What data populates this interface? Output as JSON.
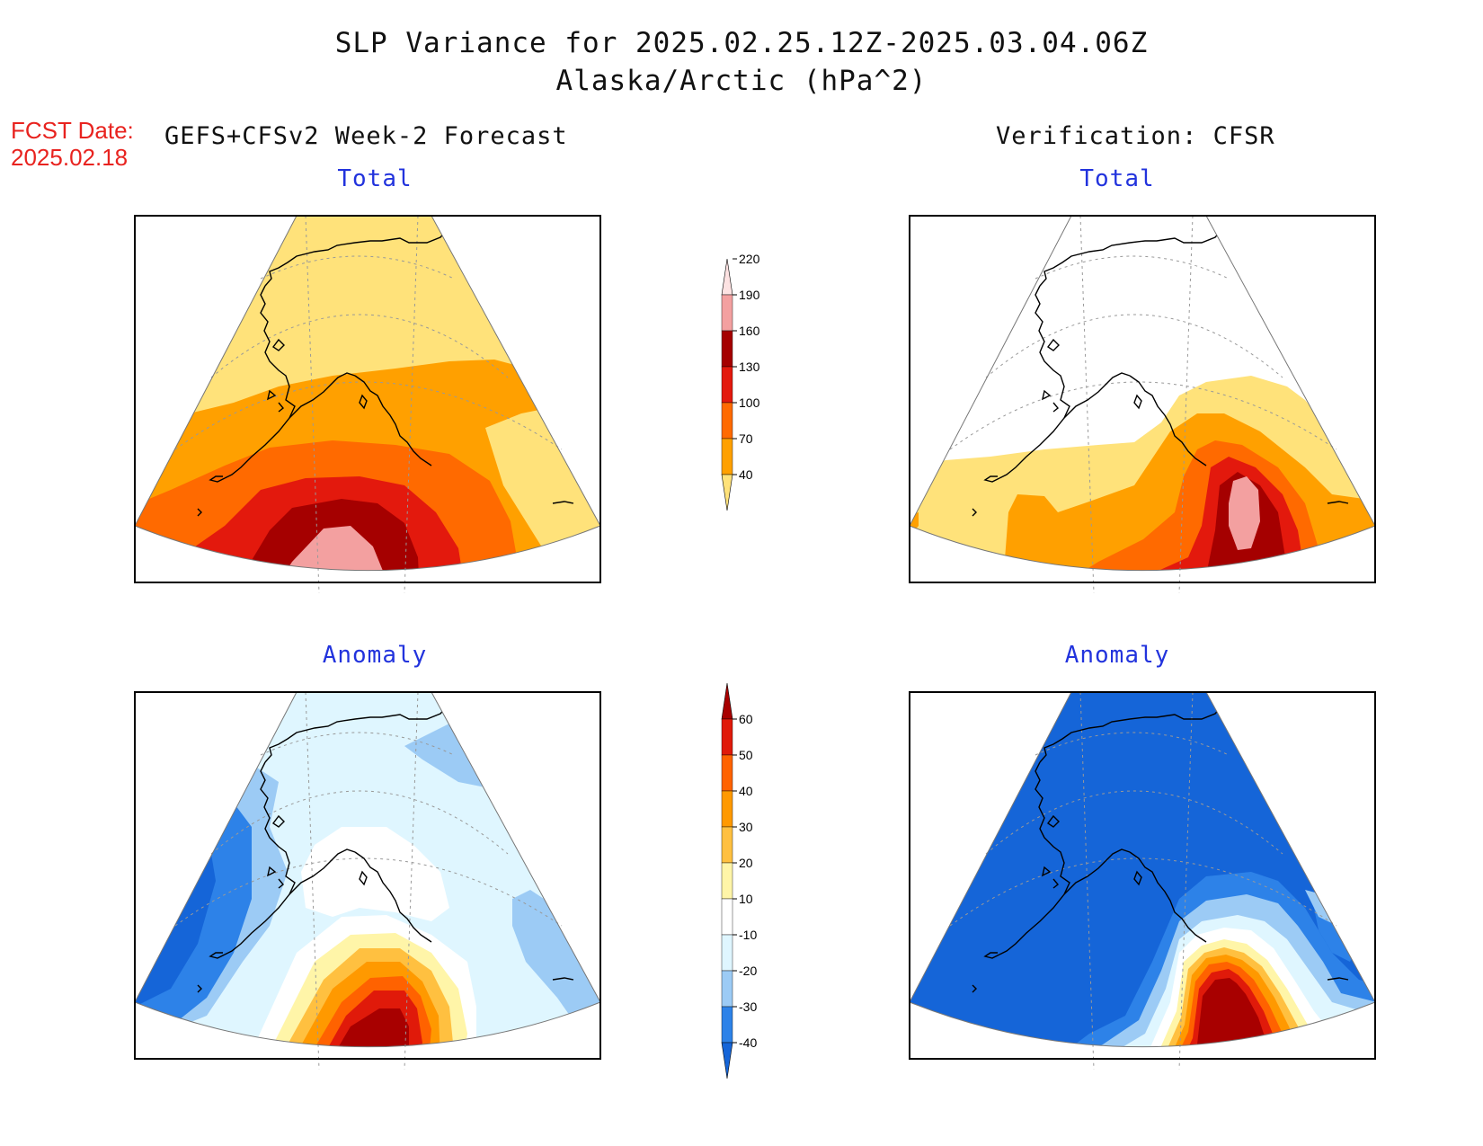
{
  "title": {
    "line1": "SLP Variance for 2025.02.25.12Z-2025.03.04.06Z",
    "line2": "Alaska/Arctic (hPa^2)"
  },
  "forecast_date": {
    "label": "FCST Date:",
    "value": "2025.02.18"
  },
  "left_header": "GEFS+CFSv2 Week-2 Forecast",
  "right_header": "Verification: CFSR",
  "panels": {
    "forecast_total": {
      "title": "Total"
    },
    "verification_total": {
      "title": "Total"
    },
    "forecast_anomaly": {
      "title": "Anomaly"
    },
    "verification_anomaly": {
      "title": "Anomaly"
    }
  },
  "colorbars": {
    "total": {
      "labels": [
        "40",
        "70",
        "100",
        "130",
        "160",
        "190",
        "220"
      ],
      "colors": [
        "#ffe27a",
        "#ffa000",
        "#ff6a00",
        "#e3190d",
        "#a50000",
        "#f3a0a0",
        "#fde2e2"
      ]
    },
    "anomaly": {
      "labels": [
        "-40",
        "-30",
        "-20",
        "-10",
        "10",
        "20",
        "30",
        "40",
        "50",
        "60"
      ],
      "colors": [
        "#1565d8",
        "#2d82e8",
        "#9ccbf5",
        "#dff6ff",
        "#ffffff",
        "#fff5a8",
        "#ffc040",
        "#ff9900",
        "#ff6200",
        "#e01a0a",
        "#a80000"
      ]
    }
  },
  "palette": {
    "frame": "#000000",
    "coast": "#000000",
    "graticule": "#999999"
  }
}
